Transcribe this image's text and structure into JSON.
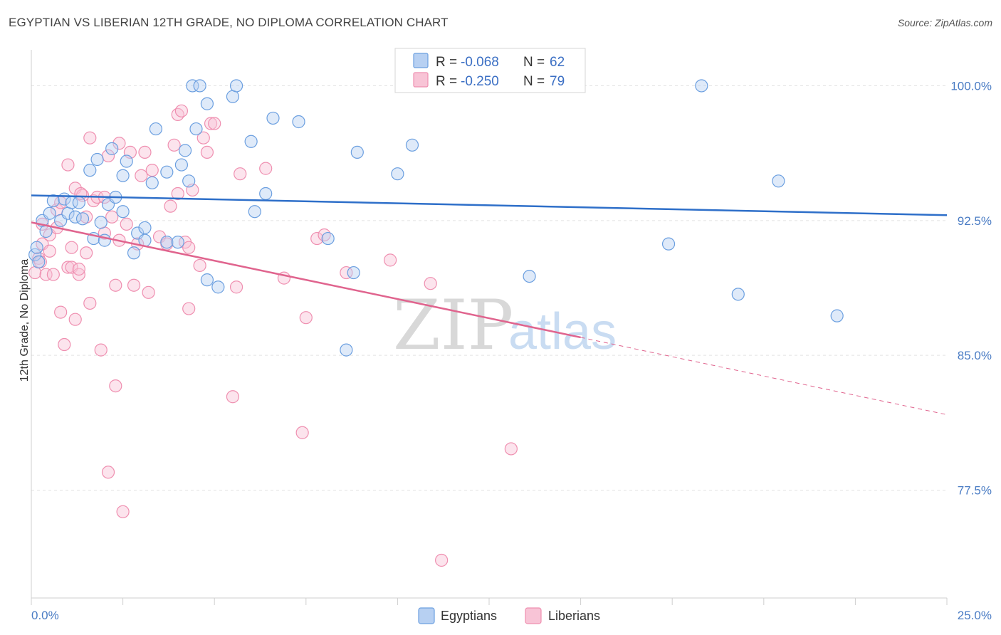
{
  "title": "EGYPTIAN VS LIBERIAN 12TH GRADE, NO DIPLOMA CORRELATION CHART",
  "source": "Source: ZipAtlas.com",
  "colors": {
    "egyptians": "#6b9fe0",
    "egyptians_fill": "#b7d0f2",
    "egyptians_line": "#2e6fc9",
    "liberians": "#ef8fb0",
    "liberians_fill": "#f8c4d6",
    "liberians_line": "#e0648e",
    "axis_text": "#4a7cc4",
    "grid": "#e2e2e2"
  },
  "legend": {
    "egyptians": {
      "r_label": "R = ",
      "r_value": "-0.068",
      "n_label": "N = ",
      "n_value": "62"
    },
    "liberians": {
      "r_label": "R = ",
      "r_value": "-0.250",
      "n_label": "N = ",
      "n_value": "79"
    }
  },
  "watermark": {
    "zip": "ZIP",
    "atlas": "atlas"
  },
  "chart_data": {
    "type": "scatter",
    "title": "EGYPTIAN VS LIBERIAN 12TH GRADE, NO DIPLOMA CORRELATION CHART",
    "xlabel": "",
    "ylabel": "12th Grade, No Diploma",
    "xlim": [
      0,
      25
    ],
    "ylim": [
      71.5,
      102
    ],
    "x_tick_labels": [
      "0.0%",
      "25.0%"
    ],
    "y_ticks": [
      77.5,
      85.0,
      92.5,
      100.0
    ],
    "y_tick_labels": [
      "77.5%",
      "85.0%",
      "92.5%",
      "100.0%"
    ],
    "grid": true,
    "legend_position": "top-center",
    "series": [
      {
        "name": "Egyptians",
        "trend": {
          "x": [
            0,
            25
          ],
          "y": [
            93.9,
            92.8
          ],
          "dashed_from": null
        },
        "points": [
          [
            0.1,
            90.6
          ],
          [
            0.2,
            90.2
          ],
          [
            0.3,
            92.5
          ],
          [
            0.4,
            91.9
          ],
          [
            0.5,
            92.9
          ],
          [
            0.6,
            93.6
          ],
          [
            0.8,
            92.5
          ],
          [
            0.9,
            93.7
          ],
          [
            1.0,
            92.9
          ],
          [
            1.1,
            93.5
          ],
          [
            1.2,
            92.7
          ],
          [
            1.3,
            93.5
          ],
          [
            1.4,
            92.6
          ],
          [
            1.6,
            95.3
          ],
          [
            1.7,
            91.5
          ],
          [
            1.8,
            95.9
          ],
          [
            1.9,
            92.4
          ],
          [
            2.0,
            91.4
          ],
          [
            2.1,
            93.4
          ],
          [
            2.2,
            96.5
          ],
          [
            2.3,
            93.8
          ],
          [
            2.5,
            95.0
          ],
          [
            2.5,
            93.0
          ],
          [
            2.6,
            95.8
          ],
          [
            2.8,
            90.7
          ],
          [
            2.9,
            91.8
          ],
          [
            3.1,
            91.4
          ],
          [
            3.1,
            92.1
          ],
          [
            3.3,
            94.6
          ],
          [
            3.4,
            97.6
          ],
          [
            3.7,
            91.3
          ],
          [
            3.7,
            95.2
          ],
          [
            4.0,
            91.3
          ],
          [
            4.1,
            95.6
          ],
          [
            4.2,
            96.4
          ],
          [
            4.3,
            94.7
          ],
          [
            4.4,
            100.0
          ],
          [
            4.5,
            97.6
          ],
          [
            4.6,
            100.0
          ],
          [
            4.8,
            89.2
          ],
          [
            4.8,
            99.0
          ],
          [
            5.1,
            88.8
          ],
          [
            5.5,
            99.4
          ],
          [
            5.6,
            100.0
          ],
          [
            6.0,
            96.9
          ],
          [
            6.1,
            93.0
          ],
          [
            6.4,
            94.0
          ],
          [
            6.6,
            98.2
          ],
          [
            7.3,
            98.0
          ],
          [
            8.1,
            91.5
          ],
          [
            8.6,
            85.3
          ],
          [
            8.8,
            89.6
          ],
          [
            8.9,
            96.3
          ],
          [
            10.0,
            95.1
          ],
          [
            10.4,
            96.7
          ],
          [
            13.6,
            89.4
          ],
          [
            17.4,
            91.2
          ],
          [
            18.3,
            100.0
          ],
          [
            19.3,
            88.4
          ],
          [
            20.4,
            94.7
          ],
          [
            22.0,
            87.2
          ],
          [
            0.15,
            91.0
          ]
        ]
      },
      {
        "name": "Liberians",
        "trend": {
          "x": [
            0,
            15,
            25
          ],
          "y": [
            92.4,
            86.0,
            81.7
          ],
          "dashed_from": 15
        },
        "points": [
          [
            0.1,
            89.6
          ],
          [
            0.2,
            90.4
          ],
          [
            0.3,
            91.2
          ],
          [
            0.3,
            92.3
          ],
          [
            0.4,
            89.5
          ],
          [
            0.5,
            91.7
          ],
          [
            0.5,
            90.8
          ],
          [
            0.6,
            89.5
          ],
          [
            0.7,
            92.1
          ],
          [
            0.7,
            93.1
          ],
          [
            0.8,
            93.5
          ],
          [
            0.8,
            87.4
          ],
          [
            0.9,
            85.6
          ],
          [
            1.0,
            89.9
          ],
          [
            1.0,
            95.6
          ],
          [
            1.1,
            91.0
          ],
          [
            1.1,
            89.9
          ],
          [
            1.2,
            94.3
          ],
          [
            1.2,
            87.0
          ],
          [
            1.3,
            89.5
          ],
          [
            1.3,
            89.8
          ],
          [
            1.4,
            93.9
          ],
          [
            1.5,
            92.7
          ],
          [
            1.5,
            90.7
          ],
          [
            1.6,
            87.9
          ],
          [
            1.6,
            97.1
          ],
          [
            1.7,
            93.6
          ],
          [
            1.8,
            93.8
          ],
          [
            1.9,
            85.3
          ],
          [
            2.0,
            91.8
          ],
          [
            2.0,
            93.8
          ],
          [
            2.1,
            96.1
          ],
          [
            2.1,
            78.5
          ],
          [
            2.2,
            92.7
          ],
          [
            2.3,
            88.9
          ],
          [
            2.3,
            83.3
          ],
          [
            2.4,
            96.8
          ],
          [
            2.4,
            91.4
          ],
          [
            2.5,
            76.3
          ],
          [
            2.6,
            92.3
          ],
          [
            2.7,
            96.3
          ],
          [
            2.8,
            88.9
          ],
          [
            2.9,
            91.2
          ],
          [
            3.0,
            95.0
          ],
          [
            3.1,
            96.3
          ],
          [
            3.2,
            88.5
          ],
          [
            3.3,
            95.3
          ],
          [
            3.5,
            91.6
          ],
          [
            3.7,
            91.2
          ],
          [
            3.8,
            93.3
          ],
          [
            3.9,
            96.7
          ],
          [
            4.0,
            98.4
          ],
          [
            4.0,
            94.0
          ],
          [
            4.1,
            98.6
          ],
          [
            4.2,
            91.3
          ],
          [
            4.3,
            91.0
          ],
          [
            4.3,
            87.6
          ],
          [
            4.4,
            94.2
          ],
          [
            4.6,
            90.0
          ],
          [
            4.7,
            97.1
          ],
          [
            4.8,
            96.3
          ],
          [
            4.9,
            97.9
          ],
          [
            5.0,
            97.9
          ],
          [
            5.5,
            82.7
          ],
          [
            5.6,
            88.8
          ],
          [
            5.7,
            95.1
          ],
          [
            6.4,
            95.4
          ],
          [
            6.9,
            89.3
          ],
          [
            7.4,
            80.7
          ],
          [
            7.5,
            87.1
          ],
          [
            7.8,
            91.5
          ],
          [
            8.0,
            91.7
          ],
          [
            8.6,
            89.6
          ],
          [
            9.8,
            90.3
          ],
          [
            10.9,
            89.0
          ],
          [
            11.2,
            73.6
          ],
          [
            13.1,
            79.8
          ],
          [
            0.25,
            90.2
          ],
          [
            1.35,
            94.0
          ]
        ]
      }
    ]
  }
}
